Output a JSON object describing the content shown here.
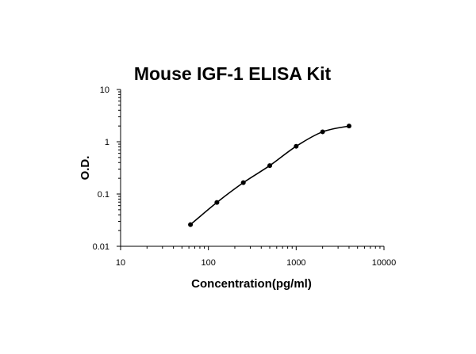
{
  "chart_data": {
    "type": "scatter",
    "title": "Mouse IGF-1 ELISA Kit",
    "xlabel": "Concentration(pg/ml)",
    "ylabel": "O.D.",
    "xscale": "log",
    "yscale": "log",
    "xlim": [
      10,
      10000
    ],
    "ylim": [
      0.01,
      10
    ],
    "x_ticks": [
      10,
      100,
      1000,
      10000
    ],
    "x_tick_labels": [
      "10",
      "100",
      "1000",
      "10000"
    ],
    "y_ticks": [
      0.01,
      0.1,
      1,
      10
    ],
    "y_tick_labels": [
      "0.01",
      "0.1",
      "1",
      "10"
    ],
    "grid": false,
    "series": [
      {
        "points": [
          {
            "x": 62.5,
            "y": 0.026
          },
          {
            "x": 125,
            "y": 0.069
          },
          {
            "x": 250,
            "y": 0.165
          },
          {
            "x": 500,
            "y": 0.35
          },
          {
            "x": 1000,
            "y": 0.82
          },
          {
            "x": 2000,
            "y": 1.55
          },
          {
            "x": 4000,
            "y": 2.0
          }
        ],
        "fit": "smooth standard curve",
        "color": "#000000"
      }
    ]
  }
}
